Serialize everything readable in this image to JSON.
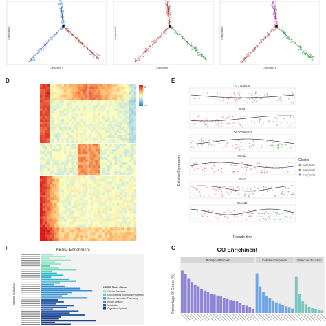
{
  "panels": {
    "d": "D",
    "e": "E",
    "f": "F",
    "g": "G"
  },
  "trajectory": {
    "ylabel": "Component 2",
    "xlabel": "Component 1"
  },
  "heatmap": {
    "legend_max": "3",
    "legend_min": "-3"
  },
  "expression": {
    "genes": [
      "AY172581.5",
      "Cst3",
      "LOC100864438",
      "Mt-nd2",
      "Rps2",
      "Slco1a4"
    ],
    "ylabel": "Relative Expression",
    "xlabel": "Pseudo-time",
    "legend_title": "Cluster",
    "legend_items": [
      "inner_hair1",
      "inner_hair2",
      "inner_hair3"
    ],
    "colors": [
      "#e8746f",
      "#5bb85c",
      "#8b7cc4"
    ]
  },
  "kegg": {
    "title": "KEGG Enrichment",
    "ylabel": "KEGG Subclass",
    "legend_title": "KEGG Main Class",
    "legend_items": [
      "Cellular Processes",
      "Environmental Information Processing",
      "Genetic Information Processing",
      "Human Disease",
      "Metabolism",
      "Organismal Systems"
    ],
    "legend_colors": [
      "#9fe7c6",
      "#57d1b0",
      "#2fb7cf",
      "#2f8fd0",
      "#2f5fa8",
      "#1f3f86"
    ]
  },
  "go": {
    "title": "GO Enrichment",
    "ylabel": "Percentage Of Genes (%)",
    "categories": [
      "Biological Process",
      "Cellular Component",
      "Molecular Function"
    ],
    "colors": [
      "#8e84d8",
      "#6fa6e8",
      "#79c7bd"
    ]
  },
  "chart_data": [
    {
      "type": "scatter",
      "panel": "trajectory-1",
      "xlabel": "Component 1",
      "ylabel": "Component 2",
      "colors": [
        "#6ea8e8",
        "#d86a4a"
      ]
    },
    {
      "type": "scatter",
      "panel": "trajectory-2",
      "xlabel": "Component 1",
      "ylabel": "Component 2",
      "colors": [
        "#e8746f",
        "#5bb85c"
      ]
    },
    {
      "type": "scatter",
      "panel": "trajectory-3",
      "xlabel": "Component 1",
      "ylabel": "Component 2",
      "colors": [
        "#e8746f",
        "#5bb85c",
        "#d66ac8"
      ]
    },
    {
      "type": "heatmap",
      "panel": "D",
      "legend": [
        "3",
        "-3"
      ]
    },
    {
      "type": "scatter",
      "panel": "E",
      "xlabel": "Pseudo-time",
      "ylabel": "Relative Expression",
      "genes": [
        "AY172581.5",
        "Cst3",
        "LOC100864438",
        "Mt-nd2",
        "Rps2",
        "Slco1a4"
      ],
      "legend": [
        "inner_hair1",
        "inner_hair2",
        "inner_hair3"
      ]
    },
    {
      "type": "bar",
      "panel": "F",
      "title": "KEGG Enrichment",
      "ylabel": "KEGG Subclass",
      "values": [
        12,
        25,
        8,
        30,
        14,
        20,
        9,
        18,
        36,
        11,
        16,
        22,
        10,
        28,
        35,
        19,
        13,
        24,
        40,
        52,
        31,
        27,
        21,
        47,
        17,
        23,
        15,
        33,
        26,
        12,
        38,
        29,
        44,
        20,
        18,
        56,
        14,
        30
      ],
      "groups": [
        0,
        0,
        0,
        0,
        0,
        0,
        1,
        1,
        1,
        1,
        2,
        2,
        2,
        2,
        2,
        2,
        3,
        3,
        3,
        3,
        3,
        3,
        3,
        3,
        4,
        4,
        4,
        4,
        4,
        4,
        4,
        4,
        4,
        5,
        5,
        5,
        5,
        5
      ]
    },
    {
      "type": "bar",
      "panel": "G",
      "title": "GO Enrichment",
      "ylabel": "Percentage Of Genes (%)",
      "ylim": [
        0,
        100
      ],
      "series": [
        {
          "name": "Biological Process",
          "values": [
            88,
            80,
            72,
            64,
            58,
            55,
            50,
            46,
            44,
            40,
            38,
            36,
            34,
            30,
            29,
            27,
            26,
            24,
            20,
            17,
            15,
            12,
            8
          ]
        },
        {
          "name": "Cellular Component",
          "values": [
            82,
            55,
            44,
            35,
            30,
            26,
            22,
            19,
            16,
            14,
            11,
            9
          ]
        },
        {
          "name": "Molecular Function",
          "values": [
            75,
            40,
            24,
            18,
            12,
            10,
            8,
            6,
            5
          ]
        }
      ]
    }
  ]
}
